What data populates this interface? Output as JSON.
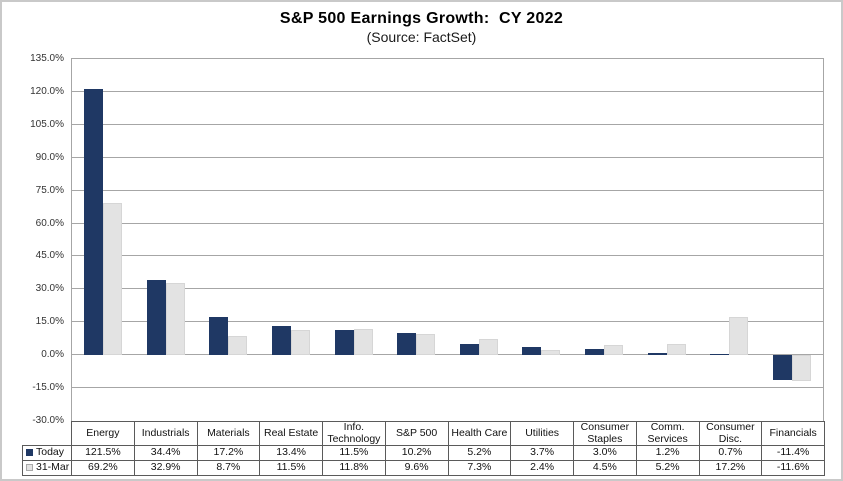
{
  "chart_data": {
    "type": "bar",
    "title": "S&P 500 Earnings Growth:  CY 2022",
    "subtitle": "(Source: FactSet)",
    "categories": [
      "Energy",
      "Industrials",
      "Materials",
      "Real Estate",
      "Info. Technology",
      "S&P 500",
      "Health Care",
      "Utilities",
      "Consumer Staples",
      "Comm. Services",
      "Consumer Disc.",
      "Financials"
    ],
    "series": [
      {
        "name": "Today",
        "color": "#1f3864",
        "values": [
          121.5,
          34.4,
          17.2,
          13.4,
          11.5,
          10.2,
          5.2,
          3.7,
          3.0,
          1.2,
          0.7,
          -11.4
        ]
      },
      {
        "name": "31-Mar",
        "color": "#e3e3e3",
        "values": [
          69.2,
          32.9,
          8.7,
          11.5,
          11.8,
          9.6,
          7.3,
          2.4,
          4.5,
          5.2,
          17.2,
          -11.6
        ]
      }
    ],
    "ylim": [
      -30,
      135
    ],
    "ytick_step": 15,
    "ytick_format": "one-decimal-percent",
    "value_suffix": "%",
    "grid": true,
    "legend_position": "table-left",
    "xlabel": "",
    "ylabel": ""
  },
  "colors": {
    "gridline": "#a6a6a6",
    "table_border": "#5a5a5a",
    "frame_border": "#c9c9c9",
    "gray_swatch_border": "#aaaaaa",
    "gray_bar_edge": "#d6d6d6"
  }
}
